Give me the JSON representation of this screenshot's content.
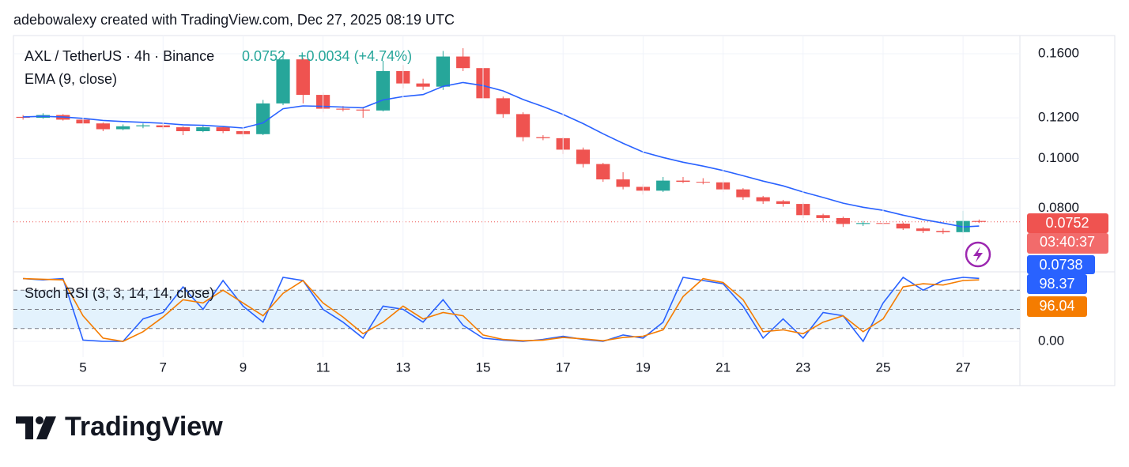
{
  "header": {
    "credit": "adebowalexy created with TradingView.com, Dec 27, 2025 08:19 UTC"
  },
  "chart_data": [
    {
      "type": "candlestick",
      "title": "AXL / TetherUS · 4h · Binance",
      "last_price": 0.0752,
      "change": "+0.0034 (+4.74%)",
      "countdown": "03:40:37",
      "up_color": "#26a69a",
      "down_color": "#ef5350",
      "log_scale": true,
      "grid": true,
      "xlim": [
        3.26,
        28.42
      ],
      "ylim": [
        0.0603,
        0.1736
      ],
      "yticks": [
        {
          "value": 0.16,
          "label": "0.1600"
        },
        {
          "value": 0.12,
          "label": "0.1200"
        },
        {
          "value": 0.1,
          "label": "0.1000"
        },
        {
          "value": 0.08,
          "label": "0.0800"
        }
      ],
      "x": [
        3.5,
        4,
        4.5,
        5,
        5.5,
        6,
        6.5,
        7,
        7.5,
        8,
        8.5,
        9,
        9.5,
        10,
        10.5,
        11,
        11.5,
        12,
        12.5,
        13,
        13.5,
        14,
        14.5,
        15,
        15.5,
        16,
        16.5,
        17,
        17.5,
        18,
        18.5,
        19,
        19.5,
        20,
        20.5,
        21,
        21.5,
        22,
        22.5,
        23,
        23.5,
        24,
        24.5,
        25,
        25.5,
        26,
        26.5,
        27,
        27.4
      ],
      "open": [
        0.1205,
        0.12,
        0.1215,
        0.119,
        0.117,
        0.114,
        0.1155,
        0.116,
        0.115,
        0.113,
        0.115,
        0.113,
        0.1115,
        0.128,
        0.156,
        0.133,
        0.125,
        0.1245,
        0.124,
        0.148,
        0.14,
        0.138,
        0.158,
        0.15,
        0.131,
        0.122,
        0.11,
        0.1095,
        0.104,
        0.0975,
        0.091,
        0.088,
        0.0865,
        0.0905,
        0.09,
        0.0898,
        0.087,
        0.084,
        0.0825,
        0.0815,
        0.0775,
        0.0765,
        0.0745,
        0.0748,
        0.0746,
        0.073,
        0.0722,
        0.0718,
        0.0755
      ],
      "high": [
        0.1215,
        0.1225,
        0.122,
        0.1195,
        0.1175,
        0.1165,
        0.117,
        0.117,
        0.1155,
        0.116,
        0.1155,
        0.114,
        0.13,
        0.16,
        0.157,
        0.1345,
        0.1265,
        0.126,
        0.155,
        0.152,
        0.143,
        0.162,
        0.164,
        0.151,
        0.132,
        0.123,
        0.111,
        0.11,
        0.105,
        0.098,
        0.094,
        0.089,
        0.092,
        0.092,
        0.0915,
        0.0905,
        0.0875,
        0.0845,
        0.083,
        0.082,
        0.078,
        0.077,
        0.0755,
        0.0755,
        0.075,
        0.0735,
        0.073,
        0.079,
        0.076
      ],
      "low": [
        0.119,
        0.1195,
        0.1185,
        0.116,
        0.113,
        0.1135,
        0.1145,
        0.114,
        0.111,
        0.1125,
        0.112,
        0.11,
        0.111,
        0.127,
        0.128,
        0.123,
        0.1235,
        0.12,
        0.1235,
        0.137,
        0.136,
        0.136,
        0.148,
        0.128,
        0.12,
        0.108,
        0.1085,
        0.102,
        0.096,
        0.09,
        0.087,
        0.085,
        0.086,
        0.0895,
        0.089,
        0.086,
        0.083,
        0.0815,
        0.0805,
        0.0765,
        0.0755,
        0.0735,
        0.0738,
        0.074,
        0.0725,
        0.0715,
        0.0712,
        0.0715,
        0.0748
      ],
      "close": [
        0.12,
        0.1215,
        0.119,
        0.117,
        0.114,
        0.1155,
        0.116,
        0.115,
        0.113,
        0.115,
        0.113,
        0.1115,
        0.128,
        0.156,
        0.133,
        0.125,
        0.1245,
        0.124,
        0.148,
        0.14,
        0.138,
        0.158,
        0.15,
        0.131,
        0.122,
        0.11,
        0.1095,
        0.104,
        0.0975,
        0.091,
        0.088,
        0.0865,
        0.0905,
        0.09,
        0.0898,
        0.087,
        0.084,
        0.0825,
        0.0815,
        0.0775,
        0.0765,
        0.0745,
        0.0748,
        0.0746,
        0.073,
        0.0722,
        0.0718,
        0.0755,
        0.0752
      ],
      "series": [
        {
          "name": "EMA (9, close)",
          "color": "#2962ff",
          "values": [
            0.1205,
            0.1208,
            0.1204,
            0.1197,
            0.1186,
            0.118,
            0.1176,
            0.1171,
            0.1163,
            0.116,
            0.1154,
            0.1146,
            0.1173,
            0.125,
            0.1266,
            0.1263,
            0.1259,
            0.1255,
            0.13,
            0.132,
            0.1332,
            0.1382,
            0.1406,
            0.1387,
            0.1354,
            0.1303,
            0.1262,
            0.1218,
            0.1169,
            0.1117,
            0.107,
            0.1029,
            0.1004,
            0.0983,
            0.0966,
            0.0947,
            0.0925,
            0.0903,
            0.0884,
            0.086,
            0.0839,
            0.0818,
            0.0803,
            0.0792,
            0.0775,
            0.076,
            0.0748,
            0.0735,
            0.0738
          ]
        }
      ]
    },
    {
      "type": "line",
      "title": "Stoch RSI (3, 3, 14, 14, close)",
      "grid": true,
      "xlim": [
        3.26,
        28.42
      ],
      "ylim": [
        -24.7,
        107.4
      ],
      "xticks": [
        5,
        7,
        9,
        11,
        13,
        15,
        17,
        19,
        21,
        23,
        25,
        27
      ],
      "yticks": [
        {
          "value": 0,
          "label": "0.00"
        }
      ],
      "hlines": [
        80,
        50,
        20
      ],
      "band_color": "#e3f2fd",
      "x": [
        3.5,
        4,
        4.5,
        5,
        5.5,
        6,
        6.5,
        7,
        7.5,
        8,
        8.5,
        9,
        9.5,
        10,
        10.5,
        11,
        11.5,
        12,
        12.5,
        13,
        13.5,
        14,
        14.5,
        15,
        15.5,
        16,
        16.5,
        17,
        17.5,
        18,
        18.5,
        19,
        19.5,
        20,
        20.5,
        21,
        21.5,
        22,
        22.5,
        23,
        23.5,
        24,
        24.5,
        25,
        25.5,
        26,
        26.5,
        27,
        27.4
      ],
      "series": [
        {
          "color": "#2962ff",
          "values": [
            98,
            96,
            98,
            2,
            0,
            0,
            35,
            45,
            85,
            50,
            95,
            55,
            30,
            100,
            95,
            50,
            30,
            5,
            55,
            50,
            30,
            65,
            25,
            5,
            2,
            0,
            3,
            8,
            3,
            0,
            10,
            5,
            30,
            100,
            95,
            90,
            55,
            5,
            35,
            5,
            45,
            40,
            0,
            60,
            100,
            80,
            95,
            100,
            98.37
          ]
        },
        {
          "color": "#f57c00",
          "values": [
            98,
            97,
            96,
            40,
            5,
            0,
            15,
            38,
            65,
            60,
            80,
            60,
            40,
            75,
            95,
            60,
            38,
            12,
            30,
            55,
            35,
            45,
            40,
            10,
            3,
            1,
            2,
            6,
            4,
            1,
            6,
            8,
            18,
            70,
            98,
            92,
            65,
            15,
            18,
            12,
            30,
            40,
            15,
            35,
            85,
            90,
            88,
            95,
            96.04
          ]
        }
      ]
    }
  ],
  "footer": {
    "logo": "TradingView"
  }
}
